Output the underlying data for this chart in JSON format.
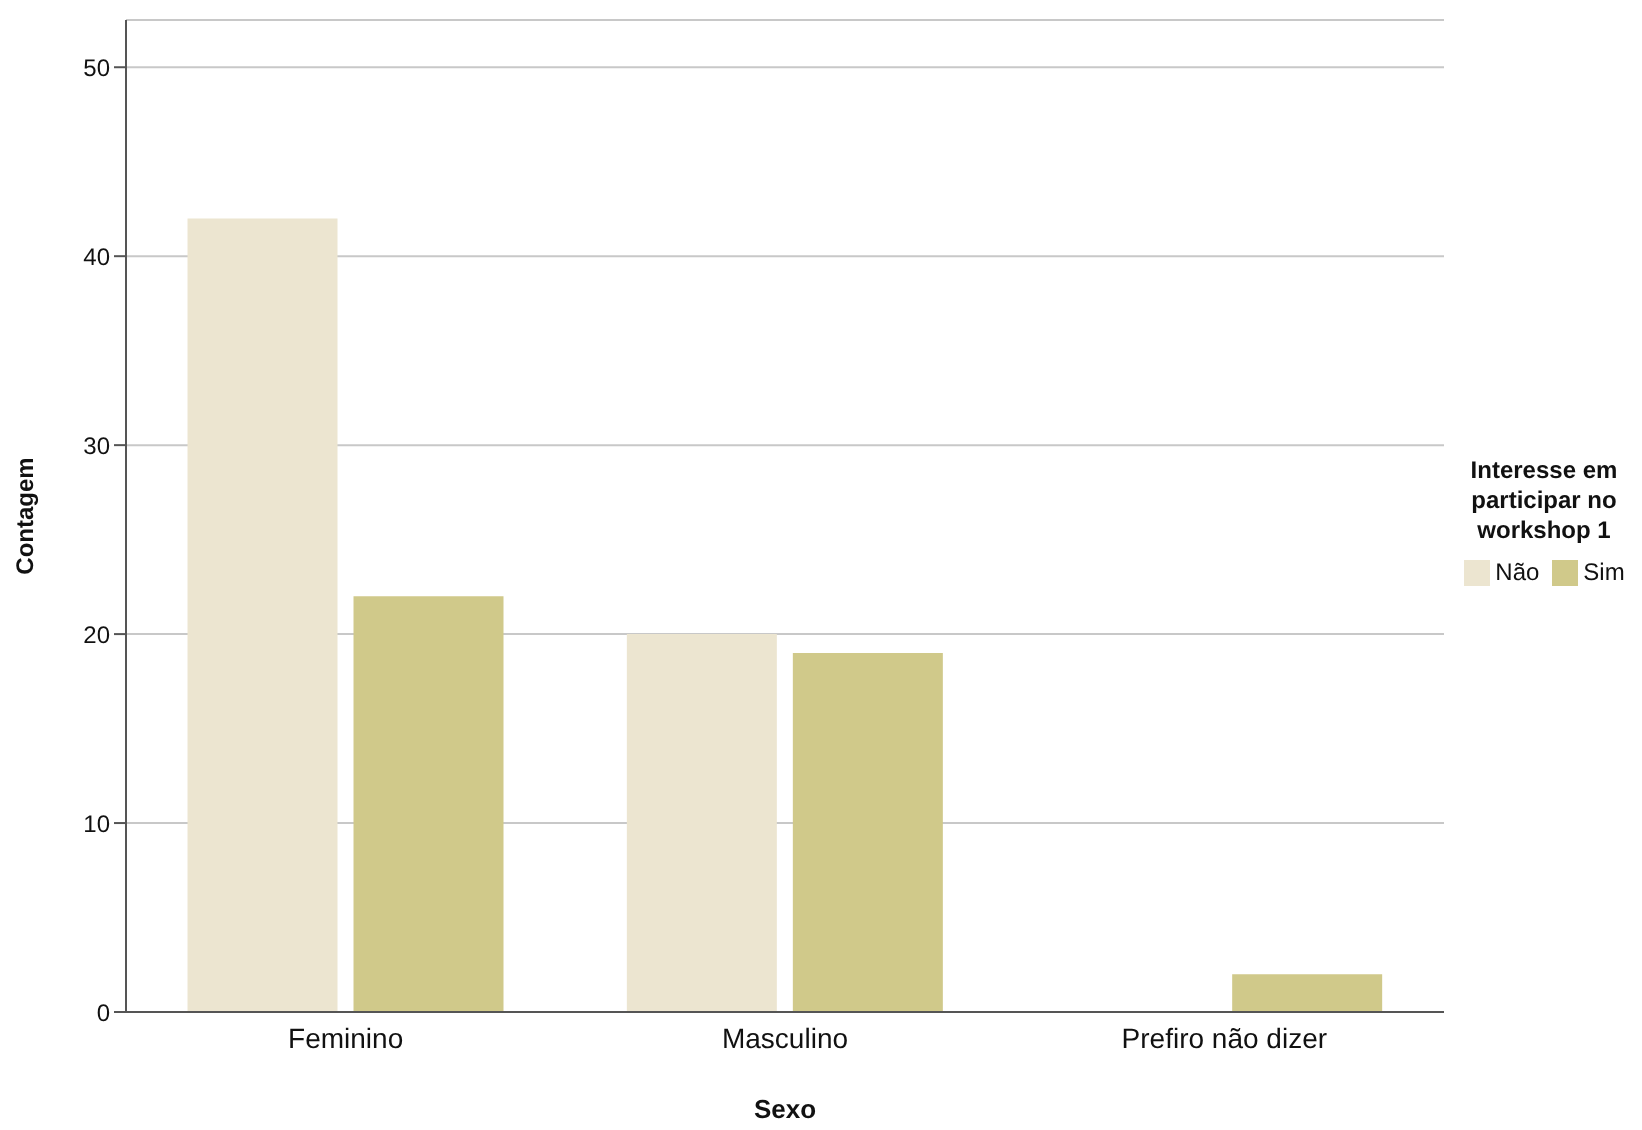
{
  "chart_data": {
    "type": "bar",
    "xlabel": "Sexo",
    "ylabel": "Contagem",
    "legend_title": "Interesse em participar no workshop 1",
    "categories": [
      "Feminino",
      "Masculino",
      "Prefiro não dizer"
    ],
    "series": [
      {
        "name": "Não",
        "color": "#ece5d0",
        "values": [
          42,
          20,
          0
        ]
      },
      {
        "name": "Sim",
        "color": "#d0c98a",
        "values": [
          22,
          19,
          2
        ]
      }
    ],
    "ylim": [
      0,
      52.5
    ],
    "yticks": [
      0,
      10,
      20,
      30,
      40,
      50
    ],
    "grid": "y",
    "legend": "right"
  }
}
